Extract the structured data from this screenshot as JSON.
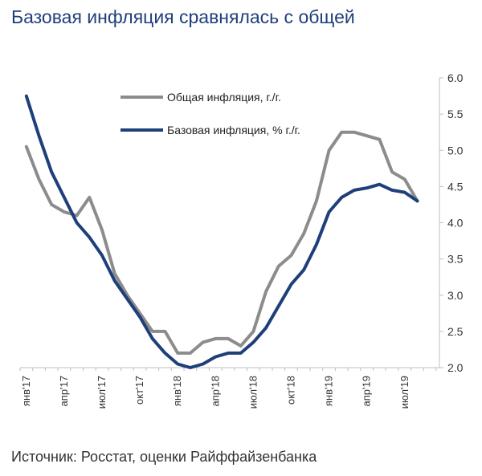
{
  "title": "Базовая инфляция сравнялась с общей",
  "source": "Источник: Росстат, оценки Райффайзенбанка",
  "chart_data": {
    "type": "line",
    "title": "Базовая инфляция сравнялась с общей",
    "xlabel": "",
    "ylabel": "",
    "ylim": [
      2.0,
      6.0
    ],
    "yticks": [
      "2.0",
      "2.5",
      "3.0",
      "3.5",
      "4.0",
      "4.5",
      "5.0",
      "5.5",
      "6.0"
    ],
    "y_axis_side": "right",
    "grid": false,
    "legend_position": "top-center",
    "x_tick_labels": [
      "янв'17",
      "апр'17",
      "июл'17",
      "окт'17",
      "янв'18",
      "апр'18",
      "июл'18",
      "окт'18",
      "янв'19",
      "апр'19",
      "июл'19"
    ],
    "x_tick_months": [
      0,
      3,
      6,
      9,
      12,
      15,
      18,
      21,
      24,
      27,
      30
    ],
    "x_months_total": 33,
    "series": [
      {
        "name": "Общая инфляция, г./г.",
        "color": "#8c8c8c",
        "values": [
          5.05,
          4.6,
          4.25,
          4.15,
          4.1,
          4.35,
          3.9,
          3.3,
          3.0,
          2.75,
          2.5,
          2.5,
          2.2,
          2.2,
          2.35,
          2.4,
          2.4,
          2.3,
          2.5,
          3.05,
          3.4,
          3.55,
          3.85,
          4.3,
          5.0,
          5.25,
          5.25,
          5.2,
          5.15,
          4.7,
          4.6,
          4.3
        ]
      },
      {
        "name": "Базовая инфляция, % г./г.",
        "color": "#1f3f7a",
        "values": [
          5.75,
          5.2,
          4.7,
          4.35,
          4.0,
          3.8,
          3.55,
          3.2,
          2.95,
          2.7,
          2.4,
          2.2,
          2.05,
          2.0,
          2.05,
          2.15,
          2.2,
          2.2,
          2.35,
          2.55,
          2.85,
          3.15,
          3.35,
          3.7,
          4.15,
          4.35,
          4.45,
          4.48,
          4.53,
          4.45,
          4.42,
          4.3
        ]
      }
    ]
  }
}
